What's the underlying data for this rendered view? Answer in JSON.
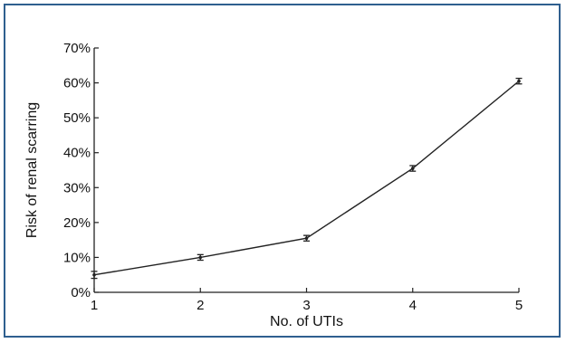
{
  "chart_data": {
    "type": "line",
    "xlabel": "No. of UTIs",
    "ylabel": "Risk of renal scarring",
    "x": [
      1,
      2,
      3,
      4,
      5
    ],
    "x_tick_labels": [
      "1",
      "2",
      "3",
      "4",
      "5"
    ],
    "xlim": [
      1,
      5
    ],
    "ylim": [
      0,
      70
    ],
    "y_ticks": [
      0,
      10,
      20,
      30,
      40,
      50,
      60,
      70
    ],
    "y_tick_labels": [
      "0%",
      "10%",
      "20%",
      "30%",
      "40%",
      "50%",
      "60%",
      "70%"
    ],
    "grid": false,
    "series": [
      {
        "values": [
          5,
          10,
          15.5,
          35.5,
          60.5
        ],
        "error": [
          1,
          0.8,
          0.8,
          0.8,
          0.8
        ]
      }
    ],
    "line_color": "#222222",
    "frame_color": "#2f5f8f"
  }
}
